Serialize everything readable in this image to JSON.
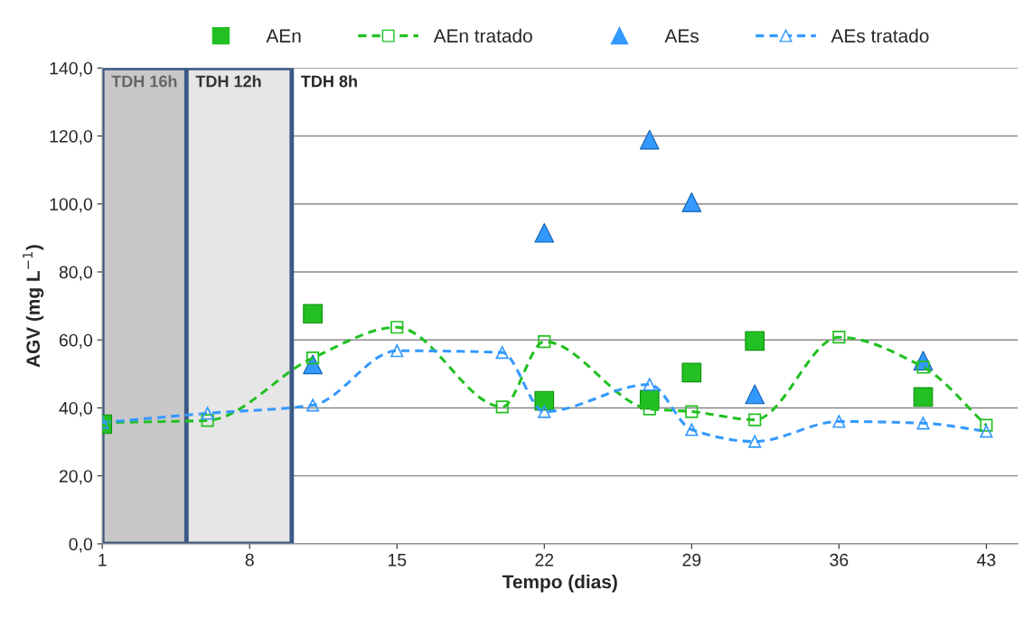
{
  "chart_data": {
    "type": "scatter",
    "xlabel": "Tempo (dias)",
    "ylabel": "AGV (mg L$^{−1}$)",
    "xlim": [
      1,
      44.5
    ],
    "xticks": [
      1,
      8,
      15,
      22,
      29,
      36,
      43
    ],
    "ylim": [
      0,
      140
    ],
    "yticks": [
      {
        "value": 0,
        "label": "0,0"
      },
      {
        "value": 20,
        "label": "20,0"
      },
      {
        "value": 40,
        "label": "40,0"
      },
      {
        "value": 60,
        "label": "60,0"
      },
      {
        "value": 80,
        "label": "80,0"
      },
      {
        "value": 100,
        "label": "100,0"
      },
      {
        "value": 120,
        "label": "120,0"
      },
      {
        "value": 140,
        "label": "140,0"
      }
    ],
    "grid": "y",
    "legend": "top",
    "bands": [
      {
        "axis": "x",
        "from": 1,
        "to": 5,
        "label": "TDH 16h",
        "color": "#c8c8c8"
      },
      {
        "axis": "x",
        "from": 5,
        "to": 10,
        "label": "TDH 12h",
        "color": "#e6e6e6"
      }
    ],
    "annotations": [
      "TDH 8h"
    ],
    "series": [
      {
        "name": "AEn",
        "type": "scatter",
        "marker": "square",
        "color": "#22c022",
        "x": [
          1,
          11,
          22,
          27,
          29,
          32,
          40
        ],
        "values": [
          35.2,
          67.7,
          42.1,
          42.4,
          50.4,
          59.7,
          43.2
        ]
      },
      {
        "name": "AEn tratado",
        "type": "line",
        "marker": "square",
        "line_style": "dashed",
        "color": "#22c022",
        "x": [
          1,
          6,
          11,
          15,
          20,
          22,
          27,
          29,
          32,
          36,
          40,
          43
        ],
        "values": [
          35.7,
          36.3,
          54.7,
          63.7,
          40.3,
          59.5,
          39.7,
          38.9,
          36.5,
          60.8,
          52.0,
          34.9
        ]
      },
      {
        "name": "AEs",
        "type": "scatter",
        "marker": "triangle",
        "color": "#3399ff",
        "x": [
          11,
          22,
          27,
          29,
          32,
          40
        ],
        "values": [
          52.8,
          91.5,
          118.9,
          100.5,
          44.0,
          53.9
        ]
      },
      {
        "name": "AEs tratado",
        "type": "line",
        "marker": "triangle",
        "line_style": "dashed",
        "color": "#3399ff",
        "x": [
          1,
          6,
          11,
          15,
          20,
          22,
          27,
          29,
          32,
          36,
          40,
          43
        ],
        "values": [
          35.7,
          38.4,
          40.8,
          56.8,
          56.3,
          38.9,
          46.9,
          33.6,
          30.1,
          36.0,
          35.5,
          33.1
        ]
      }
    ]
  }
}
